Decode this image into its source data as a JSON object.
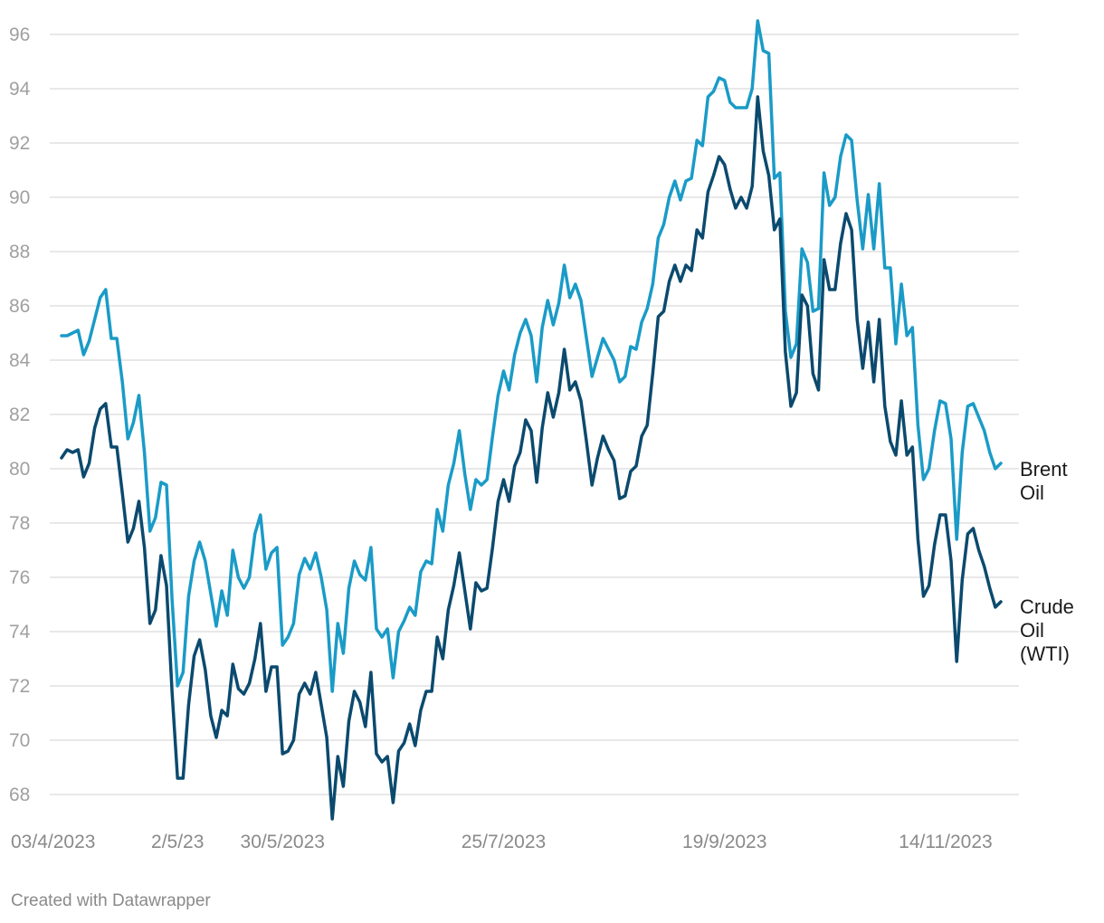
{
  "footer": {
    "credit": "Created with Datawrapper"
  },
  "chart_data": {
    "type": "line",
    "title": "",
    "xlabel": "",
    "ylabel": "",
    "ylim": [
      67,
      96.6
    ],
    "y_ticks": [
      68,
      70,
      72,
      74,
      76,
      78,
      80,
      82,
      84,
      86,
      88,
      90,
      92,
      94,
      96
    ],
    "x_tick_labels": [
      "03/4/2023",
      "2/5/23",
      "30/5/2023",
      "25/7/2023",
      "19/9/2023",
      "14/11/2023"
    ],
    "x_tick_index": [
      0,
      21,
      40,
      80,
      120,
      160
    ],
    "grid": true,
    "legend": "direct labels at right end of lines",
    "colors": {
      "brent": "#1a9bc7",
      "wti": "#0b4a6e"
    },
    "series": [
      {
        "name": "Brent Oil",
        "label_lines": [
          "Brent",
          "Oil"
        ],
        "color": "#1a9bc7",
        "values": [
          84.9,
          84.9,
          85.0,
          85.1,
          84.2,
          84.7,
          85.5,
          86.3,
          86.6,
          84.8,
          84.8,
          83.2,
          81.1,
          81.7,
          82.7,
          80.6,
          77.7,
          78.2,
          79.5,
          79.4,
          75.2,
          72.0,
          72.5,
          75.3,
          76.6,
          77.3,
          76.6,
          75.4,
          74.2,
          75.5,
          74.6,
          77.0,
          76.0,
          75.6,
          76.0,
          77.6,
          78.3,
          76.3,
          76.9,
          77.1,
          73.5,
          73.8,
          74.3,
          76.1,
          76.7,
          76.3,
          76.9,
          76.0,
          74.8,
          71.8,
          74.3,
          73.2,
          75.6,
          76.6,
          76.1,
          75.9,
          77.1,
          74.1,
          73.8,
          74.1,
          72.3,
          74.0,
          74.4,
          74.9,
          74.6,
          76.2,
          76.6,
          76.5,
          78.5,
          77.7,
          79.4,
          80.2,
          81.4,
          79.8,
          78.5,
          79.6,
          79.4,
          79.6,
          81.2,
          82.7,
          83.6,
          82.9,
          84.2,
          85.0,
          85.5,
          84.9,
          83.2,
          85.2,
          86.2,
          85.3,
          86.1,
          87.5,
          86.3,
          86.8,
          86.2,
          84.8,
          83.4,
          84.1,
          84.8,
          84.4,
          84.0,
          83.2,
          83.4,
          84.5,
          84.4,
          85.4,
          85.9,
          86.8,
          88.5,
          89.0,
          90.0,
          90.6,
          89.9,
          90.6,
          90.7,
          92.1,
          91.9,
          93.7,
          93.9,
          94.4,
          94.3,
          93.5,
          93.3,
          93.3,
          93.3,
          94.0,
          96.5,
          95.4,
          95.3,
          90.7,
          90.9,
          85.8,
          84.1,
          84.6,
          88.1,
          87.6,
          85.8,
          85.9,
          90.9,
          89.7,
          90.0,
          91.5,
          92.3,
          92.1,
          89.9,
          88.1,
          90.1,
          88.1,
          90.5,
          87.4,
          87.4,
          84.6,
          86.8,
          84.9,
          85.2,
          81.6,
          79.6,
          80.0,
          81.4,
          82.5,
          82.4,
          81.1,
          77.4,
          80.6,
          82.3,
          82.4,
          81.9,
          81.4,
          80.6,
          80.0,
          80.2
        ]
      },
      {
        "name": "Crude Oil (WTI)",
        "label_lines": [
          "Crude",
          "Oil",
          "(WTI)"
        ],
        "color": "#0b4a6e",
        "values": [
          80.4,
          80.7,
          80.6,
          80.7,
          79.7,
          80.2,
          81.5,
          82.2,
          82.4,
          80.8,
          80.8,
          79.1,
          77.3,
          77.8,
          78.8,
          77.1,
          74.3,
          74.8,
          76.8,
          75.7,
          71.8,
          68.6,
          68.6,
          71.3,
          73.1,
          73.7,
          72.6,
          70.9,
          70.1,
          71.1,
          70.9,
          72.8,
          71.9,
          71.7,
          72.1,
          73.0,
          74.3,
          71.8,
          72.7,
          72.7,
          69.5,
          69.6,
          70.0,
          71.7,
          72.1,
          71.7,
          72.5,
          71.3,
          70.1,
          67.1,
          69.4,
          68.3,
          70.7,
          71.8,
          71.4,
          70.5,
          72.5,
          69.5,
          69.2,
          69.4,
          67.7,
          69.6,
          69.9,
          70.6,
          69.8,
          71.1,
          71.8,
          71.8,
          73.8,
          73.0,
          74.8,
          75.7,
          76.9,
          75.5,
          74.1,
          75.8,
          75.5,
          75.6,
          77.1,
          78.8,
          79.6,
          78.8,
          80.1,
          80.6,
          81.8,
          81.4,
          79.5,
          81.5,
          82.8,
          81.9,
          82.8,
          84.4,
          82.9,
          83.2,
          82.5,
          81.0,
          79.4,
          80.4,
          81.2,
          80.7,
          80.3,
          78.9,
          79.0,
          79.9,
          80.1,
          81.2,
          81.6,
          83.5,
          85.6,
          85.8,
          86.9,
          87.5,
          86.9,
          87.5,
          87.3,
          88.8,
          88.5,
          90.2,
          90.8,
          91.5,
          91.2,
          90.3,
          89.6,
          90.0,
          89.6,
          90.4,
          93.7,
          91.7,
          90.8,
          88.8,
          89.2,
          84.3,
          82.3,
          82.8,
          86.4,
          86.0,
          83.5,
          82.9,
          87.7,
          86.6,
          86.6,
          88.3,
          89.4,
          88.8,
          85.5,
          83.7,
          85.4,
          83.2,
          85.5,
          82.3,
          81.0,
          80.5,
          82.5,
          80.5,
          80.8,
          77.4,
          75.3,
          75.7,
          77.2,
          78.3,
          78.3,
          76.6,
          72.9,
          75.9,
          77.6,
          77.8,
          77.0,
          76.4,
          75.6,
          74.9,
          75.1
        ]
      }
    ]
  }
}
